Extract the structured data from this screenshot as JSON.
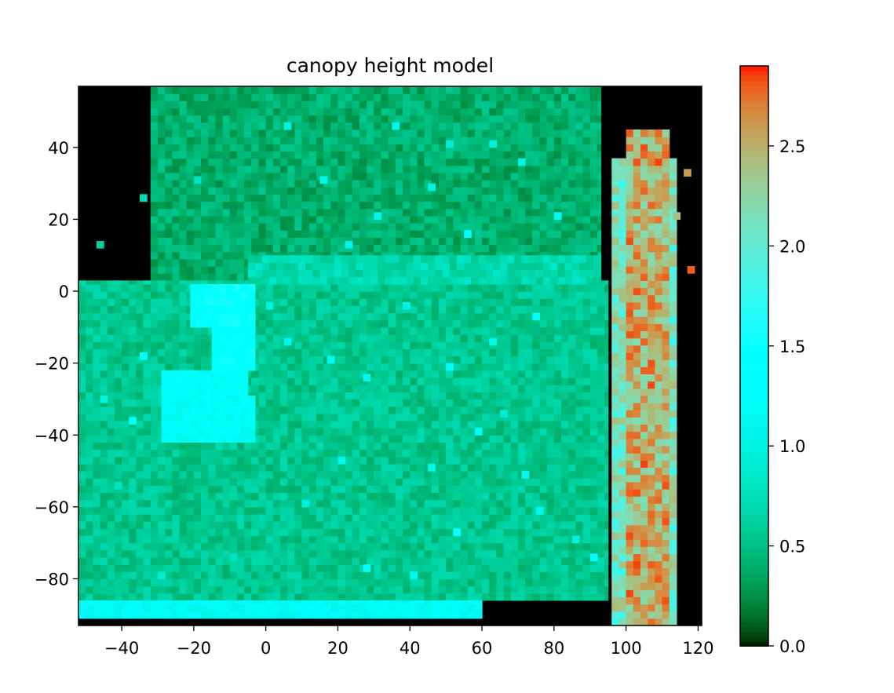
{
  "chart_data": {
    "type": "heatmap",
    "title": "canopy height model",
    "xlabel": "",
    "ylabel": "",
    "xlim": [
      -52,
      121
    ],
    "ylim": [
      -93,
      57
    ],
    "xticks": [
      -40,
      -20,
      0,
      20,
      40,
      60,
      80,
      100,
      120
    ],
    "xtick_labels": [
      "−40",
      "−20",
      "0",
      "20",
      "40",
      "60",
      "80",
      "100",
      "120"
    ],
    "yticks": [
      40,
      20,
      0,
      -20,
      -40,
      -60,
      -80
    ],
    "ytick_labels": [
      "40",
      "20",
      "0",
      "−20",
      "−40",
      "−60",
      "−80"
    ],
    "cell_size": 2,
    "colormap": "rainbow",
    "clim": [
      0,
      2.9
    ],
    "colorbar": {
      "ticks": [
        0.0,
        0.5,
        1.0,
        1.5,
        2.0,
        2.5
      ],
      "tick_labels": [
        "0.0",
        "0.5",
        "1.0",
        "1.5",
        "2.0",
        "2.5"
      ]
    },
    "grid": false,
    "regions": [
      {
        "name": "background",
        "x": [
          -52,
          121
        ],
        "y": [
          -93,
          57
        ],
        "value": 0.0
      },
      {
        "name": "upper canopy block",
        "x": [
          -32,
          93
        ],
        "y": [
          3,
          57
        ],
        "value": 0.4
      },
      {
        "name": "lower ground block",
        "x": [
          -52,
          95
        ],
        "y": [
          -86,
          3
        ],
        "value": 0.55
      },
      {
        "name": "mid row band",
        "x": [
          -5,
          93
        ],
        "y": [
          2,
          10
        ],
        "value": 0.7
      },
      {
        "name": "green patch A",
        "x": [
          -21,
          -3
        ],
        "y": [
          -10,
          2
        ],
        "value": 1.45
      },
      {
        "name": "green patch B",
        "x": [
          -15,
          -3
        ],
        "y": [
          -22,
          -10
        ],
        "value": 1.4
      },
      {
        "name": "green patch C",
        "x": [
          -29,
          -5
        ],
        "y": [
          -29,
          -22
        ],
        "value": 1.3
      },
      {
        "name": "green patch D",
        "x": [
          -29,
          -3
        ],
        "y": [
          -42,
          -29
        ],
        "value": 1.25
      },
      {
        "name": "bottom strip",
        "x": [
          -52,
          60
        ],
        "y": [
          -91,
          -86
        ],
        "value": 1.2
      },
      {
        "name": "tree row",
        "x": [
          96,
          114
        ],
        "y": [
          -93,
          45
        ],
        "value": 2.5
      }
    ],
    "scatter_cells": [
      [
        -35,
        -19,
        1.3
      ],
      [
        5,
        -15,
        1.1
      ],
      [
        17,
        -20,
        1.2
      ],
      [
        27,
        -25,
        1.1
      ],
      [
        38,
        -5,
        1.0
      ],
      [
        50,
        -22,
        1.3
      ],
      [
        62,
        -15,
        1.1
      ],
      [
        58,
        -40,
        1.2
      ],
      [
        45,
        -50,
        1.1
      ],
      [
        52,
        -68,
        1.5
      ],
      [
        71,
        -52,
        1.2
      ],
      [
        75,
        -62,
        1.1
      ],
      [
        85,
        -70,
        1.0
      ],
      [
        27,
        -78,
        1.3
      ],
      [
        40,
        -80,
        1.1
      ],
      [
        10,
        -60,
        1.0
      ],
      [
        20,
        -48,
        1.1
      ],
      [
        65,
        -35,
        0.9
      ],
      [
        74,
        -8,
        1.2
      ],
      [
        90,
        -75,
        1.3
      ],
      [
        5,
        45,
        1.0
      ],
      [
        15,
        30,
        1.1
      ],
      [
        30,
        20,
        1.1
      ],
      [
        45,
        28,
        1.0
      ],
      [
        55,
        15,
        1.3
      ],
      [
        70,
        35,
        1.0
      ],
      [
        80,
        20,
        1.2
      ],
      [
        62,
        40,
        1.0
      ],
      [
        35,
        45,
        1.1
      ],
      [
        22,
        12,
        1.1
      ],
      [
        50,
        40,
        0.9
      ],
      [
        -20,
        30,
        0.8
      ],
      [
        -35,
        25,
        0.7
      ],
      [
        -47,
        12,
        0.6
      ],
      [
        -46,
        -31,
        1.0
      ],
      [
        -38,
        -37,
        1.3
      ],
      [
        -42,
        -55,
        0.8
      ],
      [
        -50,
        -70,
        0.7
      ],
      [
        -30,
        -80,
        0.9
      ],
      [
        -10,
        -75,
        0.8
      ],
      [
        116,
        32,
        2.6
      ],
      [
        113,
        20,
        2.4
      ],
      [
        117,
        5,
        2.8
      ],
      [
        -14,
        -35,
        1.5
      ],
      [
        0,
        -5,
        1.0
      ]
    ]
  }
}
